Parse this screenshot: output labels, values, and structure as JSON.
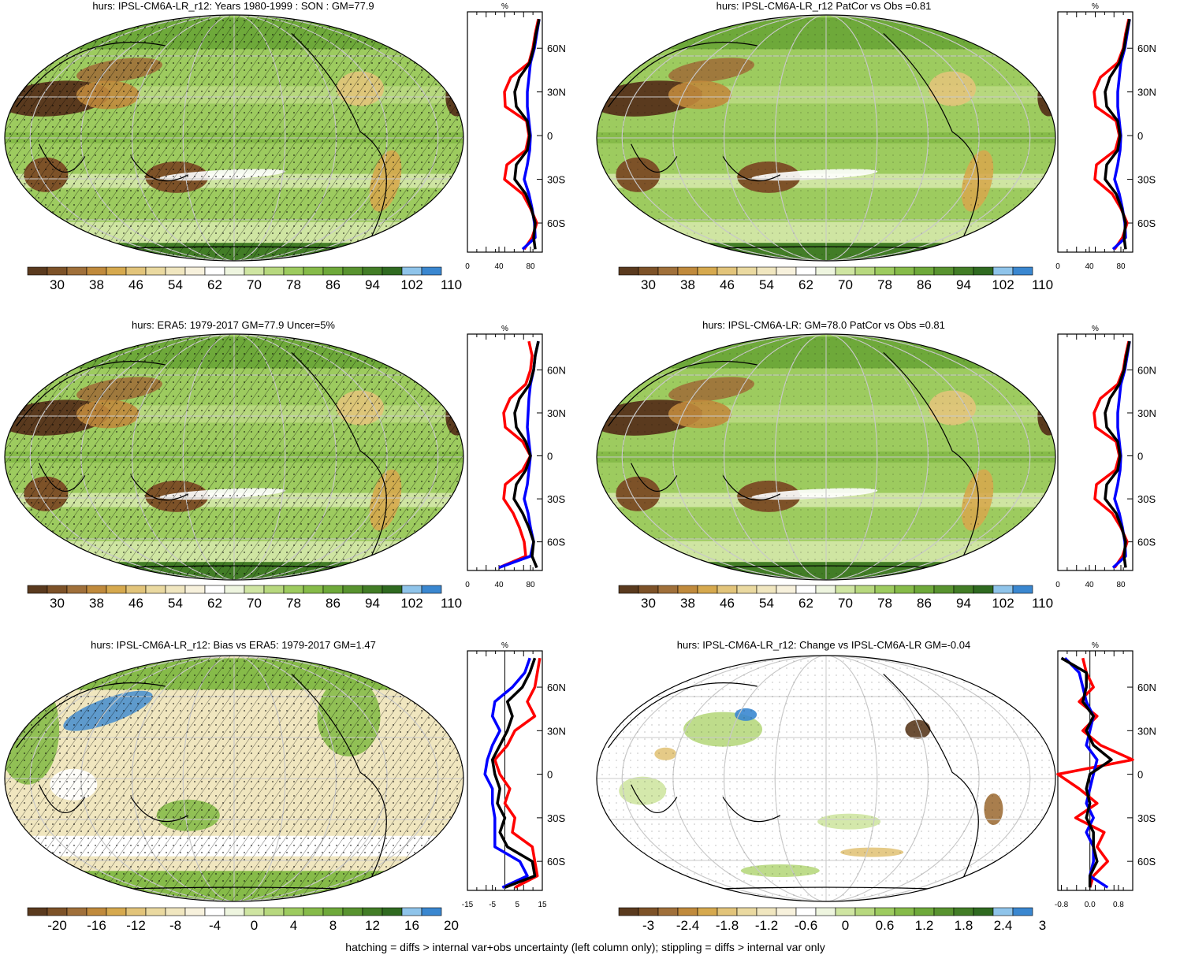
{
  "footer": "hatching = diffs > internal var+obs uncertainty (left column only); stippling = diffs > internal var only",
  "colors": {
    "model": "#ff0000",
    "obs": "#0000ff",
    "mean": "#000000",
    "abs_scale": [
      "#5a3a1e",
      "#7d5228",
      "#a0703a",
      "#c08a3c",
      "#d6a94e",
      "#e2c47a",
      "#ead9a0",
      "#f0e6bf",
      "#f7f1dc",
      "#ffffff",
      "#eef5df",
      "#cfe5a2",
      "#b7d87e",
      "#9dcb5f",
      "#86bb49",
      "#6ea93a",
      "#58932f",
      "#427d26",
      "#2f6a20",
      "#8fc4ea",
      "#3a87d0"
    ],
    "diff_scale": [
      "#5a3a1e",
      "#7d5228",
      "#a0703a",
      "#c08a3c",
      "#d6a94e",
      "#e2c47a",
      "#ead9a0",
      "#f0e6bf",
      "#f7f1dc",
      "#ffffff",
      "#eef5df",
      "#cfe5a2",
      "#b7d87e",
      "#9dcb5f",
      "#86bb49",
      "#6ea93a",
      "#58932f",
      "#427d26",
      "#2f6a20",
      "#8fc4ea",
      "#3a87d0"
    ]
  },
  "chart_data": [
    {
      "type": "heatmap",
      "title": "hurs: IPSL-CM6A-LR_r12: Years 1980-1999 : SON : GM=77.9",
      "colorbar_ticks": [
        "30",
        "38",
        "46",
        "54",
        "62",
        "70",
        "78",
        "86",
        "94",
        "102",
        "110"
      ],
      "zonal": {
        "unit": "%",
        "lat_ticks": [
          "60N",
          "30N",
          "0",
          "30S",
          "60S"
        ],
        "x_ticks": [
          "0",
          "40",
          "80"
        ],
        "xlim": [
          0,
          95
        ],
        "lat": [
          80,
          70,
          60,
          50,
          40,
          30,
          20,
          10,
          0,
          -10,
          -20,
          -30,
          -40,
          -50,
          -60,
          -70,
          -78
        ],
        "series": [
          {
            "name": "model",
            "values": [
              90,
              86,
              83,
              78,
              55,
              47,
              48,
              75,
              78,
              74,
              50,
              47,
              70,
              80,
              88,
              82,
              72
            ]
          },
          {
            "name": "obs",
            "values": [
              91,
              88,
              85,
              80,
              78,
              76,
              76,
              78,
              80,
              79,
              76,
              72,
              78,
              82,
              85,
              86,
              70
            ]
          },
          {
            "name": "mean",
            "values": [
              91,
              87,
              84,
              79,
              66,
              60,
              62,
              76,
              79,
              76,
              62,
              60,
              74,
              81,
              86,
              84,
              86
            ]
          }
        ]
      }
    },
    {
      "type": "heatmap",
      "title": "hurs: IPSL-CM6A-LR_r12 PatCor vs Obs =0.81",
      "colorbar_ticks": [
        "30",
        "38",
        "46",
        "54",
        "62",
        "70",
        "78",
        "86",
        "94",
        "102",
        "110"
      ],
      "zonal": {
        "unit": "%",
        "lat_ticks": [
          "60N",
          "30N",
          "0",
          "30S",
          "60S"
        ],
        "x_ticks": [
          "0",
          "40",
          "80"
        ],
        "xlim": [
          0,
          95
        ],
        "lat": [
          80,
          70,
          60,
          50,
          40,
          30,
          20,
          10,
          0,
          -10,
          -20,
          -30,
          -40,
          -50,
          -60,
          -70,
          -78
        ],
        "series": [
          {
            "name": "model",
            "values": [
              90,
              86,
              83,
              76,
              54,
              46,
              48,
              74,
              78,
              73,
              49,
              47,
              69,
              80,
              88,
              82,
              72
            ]
          },
          {
            "name": "obs",
            "values": [
              91,
              88,
              85,
              80,
              78,
              76,
              76,
              78,
              80,
              79,
              76,
              72,
              78,
              82,
              85,
              86,
              70
            ]
          },
          {
            "name": "mean",
            "values": [
              91,
              87,
              84,
              78,
              66,
              60,
              62,
              76,
              79,
              76,
              62,
              60,
              74,
              81,
              86,
              84,
              86
            ]
          }
        ]
      }
    },
    {
      "type": "heatmap",
      "title": "hurs: ERA5: 1979-2017 GM=77.9 Uncer=5%",
      "colorbar_ticks": [
        "30",
        "38",
        "46",
        "54",
        "62",
        "70",
        "78",
        "86",
        "94",
        "102",
        "110"
      ],
      "zonal": {
        "unit": "%",
        "lat_ticks": [
          "60N",
          "30N",
          "0",
          "30S",
          "60S"
        ],
        "x_ticks": [
          "0",
          "40",
          "80"
        ],
        "xlim": [
          0,
          95
        ],
        "lat": [
          80,
          70,
          60,
          50,
          40,
          30,
          20,
          10,
          0,
          -10,
          -20,
          -30,
          -40,
          -50,
          -60,
          -70,
          -78
        ],
        "series": [
          {
            "name": "model",
            "values": [
              78,
              82,
              80,
              74,
              54,
              46,
              48,
              70,
              80,
              70,
              48,
              46,
              58,
              66,
              72,
              74,
              40
            ]
          },
          {
            "name": "obs",
            "values": [
              90,
              86,
              84,
              80,
              78,
              77,
              76,
              78,
              80,
              78,
              76,
              72,
              77,
              80,
              84,
              80,
              40
            ]
          },
          {
            "name": "mean",
            "values": [
              90,
              86,
              84,
              79,
              66,
              60,
              62,
              74,
              80,
              74,
              62,
              59,
              70,
              78,
              84,
              82,
              88
            ]
          }
        ]
      }
    },
    {
      "type": "heatmap",
      "title": "hurs: IPSL-CM6A-LR: GM=78.0 PatCor vs Obs =0.81",
      "colorbar_ticks": [
        "30",
        "38",
        "46",
        "54",
        "62",
        "70",
        "78",
        "86",
        "94",
        "102",
        "110"
      ],
      "zonal": {
        "unit": "%",
        "lat_ticks": [
          "60N",
          "30N",
          "0",
          "30S",
          "60S"
        ],
        "x_ticks": [
          "0",
          "40",
          "80"
        ],
        "xlim": [
          0,
          95
        ],
        "lat": [
          80,
          70,
          60,
          50,
          40,
          30,
          20,
          10,
          0,
          -10,
          -20,
          -30,
          -40,
          -50,
          -60,
          -70,
          -78
        ],
        "series": [
          {
            "name": "model",
            "values": [
              90,
              86,
              83,
              76,
              54,
              46,
              48,
              74,
              78,
              73,
              49,
              47,
              69,
              80,
              88,
              82,
              72
            ]
          },
          {
            "name": "obs",
            "values": [
              91,
              88,
              85,
              80,
              78,
              76,
              76,
              78,
              80,
              79,
              76,
              72,
              78,
              82,
              85,
              86,
              70
            ]
          },
          {
            "name": "mean",
            "values": [
              91,
              87,
              84,
              78,
              66,
              60,
              62,
              76,
              79,
              76,
              62,
              60,
              74,
              81,
              86,
              84,
              86
            ]
          }
        ]
      }
    },
    {
      "type": "heatmap",
      "title": "hurs: IPSL-CM6A-LR_r12: Bias vs ERA5: 1979-2017  GM=1.47",
      "colorbar_ticks": [
        "-20",
        "-16",
        "-12",
        "-8",
        "-4",
        "0",
        "4",
        "8",
        "12",
        "16",
        "20"
      ],
      "zonal": {
        "unit": "%",
        "lat_ticks": [
          "60N",
          "30N",
          "0",
          "30S",
          "60S"
        ],
        "x_ticks": [
          "-15",
          "-5",
          "5",
          "15"
        ],
        "xlim": [
          -15,
          15
        ],
        "lat": [
          80,
          70,
          60,
          50,
          40,
          30,
          20,
          10,
          0,
          -10,
          -20,
          -30,
          -40,
          -50,
          -60,
          -70,
          -78
        ],
        "series": [
          {
            "name": "model",
            "values": [
              14,
              13,
              12,
              9,
              12,
              4,
              1,
              -4,
              -2,
              2,
              0,
              4,
              3,
              11,
              12,
              13,
              4
            ]
          },
          {
            "name": "obs",
            "values": [
              10,
              8,
              3,
              -4,
              -5,
              -2,
              -5,
              -7,
              -8,
              -5,
              -5,
              -4,
              -4,
              -4,
              6,
              9,
              -1
            ]
          },
          {
            "name": "mean",
            "values": [
              12,
              10,
              7,
              1,
              3,
              1,
              -2,
              -5,
              -4,
              -2,
              -3,
              0,
              -2,
              1,
              11,
              12,
              0
            ]
          }
        ]
      }
    },
    {
      "type": "heatmap",
      "title": "hurs: IPSL-CM6A-LR_r12: Change vs IPSL-CM6A-LR GM=-0.04",
      "colorbar_ticks": [
        "-3",
        "-2.4",
        "-1.8",
        "-1.2",
        "-0.6",
        "0",
        "0.6",
        "1.2",
        "1.8",
        "2.4",
        "3"
      ],
      "zonal": {
        "unit": "%",
        "lat_ticks": [
          "60N",
          "30N",
          "0",
          "30S",
          "60S"
        ],
        "x_ticks": [
          "-0.8",
          "0.0",
          "0.8"
        ],
        "xlim": [
          -0.9,
          1.2
        ],
        "lat": [
          80,
          70,
          60,
          50,
          40,
          30,
          20,
          10,
          0,
          -10,
          -20,
          -30,
          -40,
          -50,
          -60,
          -70,
          -78
        ],
        "series": [
          {
            "name": "model",
            "values": [
              -0.2,
              -0.1,
              0.1,
              -0.3,
              0.2,
              -0.2,
              0.3,
              1.2,
              -0.9,
              -0.3,
              0.2,
              -0.4,
              0.4,
              0.2,
              0.5,
              0.1,
              0.0
            ]
          },
          {
            "name": "obs",
            "values": [
              -0.7,
              -0.3,
              -0.2,
              -0.1,
              0.1,
              0.0,
              -0.1,
              0.2,
              0.1,
              0.0,
              -0.1,
              0.1,
              -0.1,
              0.1,
              0.1,
              0.0,
              0.5
            ]
          },
          {
            "name": "mean",
            "values": [
              -0.8,
              -0.1,
              -0.1,
              -0.2,
              0.1,
              -0.1,
              0.1,
              0.6,
              0.0,
              -0.1,
              0.0,
              -0.1,
              0.1,
              0.1,
              0.2,
              0.0,
              0.0
            ]
          }
        ]
      }
    }
  ]
}
